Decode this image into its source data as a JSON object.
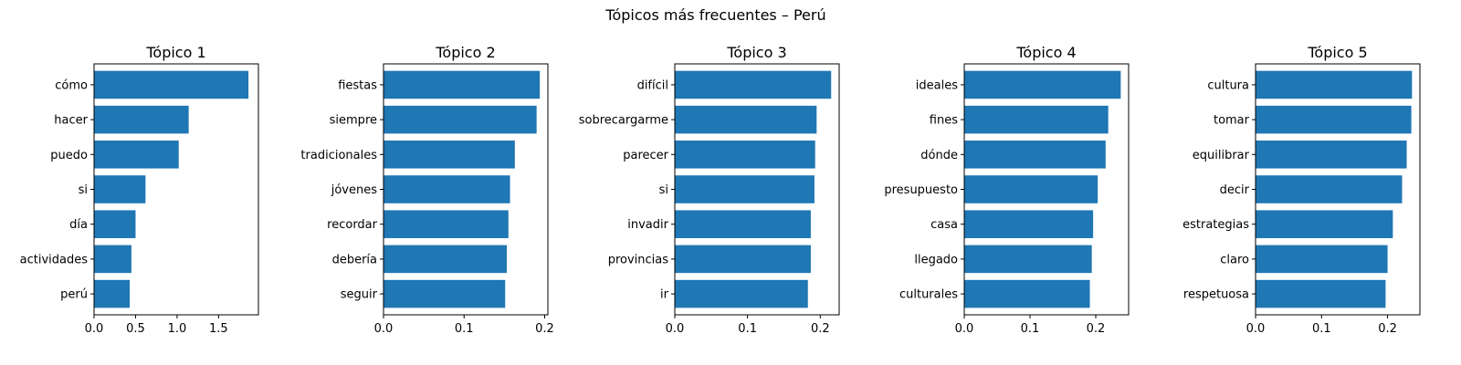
{
  "figure_title": "Tópicos más frecuentes – Perú",
  "bar_color": "#1f77b4",
  "chart_data": [
    {
      "type": "bar",
      "orientation": "horizontal",
      "title": "Tópico 1",
      "categories": [
        "cómo",
        "hacer",
        "puedo",
        "si",
        "día",
        "actividades",
        "perú"
      ],
      "values": [
        1.86,
        1.14,
        1.02,
        0.62,
        0.5,
        0.45,
        0.43
      ],
      "xlim": [
        0,
        1.98
      ],
      "xticks": [
        0.0,
        0.5,
        1.0,
        1.5
      ],
      "xtick_labels": [
        "0.0",
        "0.5",
        "1.0",
        "1.5"
      ]
    },
    {
      "type": "bar",
      "orientation": "horizontal",
      "title": "Tópico 2",
      "categories": [
        "fiestas",
        "siempre",
        "tradicionales",
        "jóvenes",
        "recordar",
        "debería",
        "seguir"
      ],
      "values": [
        0.194,
        0.19,
        0.163,
        0.157,
        0.155,
        0.153,
        0.151
      ],
      "xlim": [
        0,
        0.204
      ],
      "xticks": [
        0.0,
        0.1,
        0.2
      ],
      "xtick_labels": [
        "0.0",
        "0.1",
        "0.2"
      ]
    },
    {
      "type": "bar",
      "orientation": "horizontal",
      "title": "Tópico 3",
      "categories": [
        "difícil",
        "sobrecargarme",
        "parecer",
        "si",
        "invadir",
        "provincias",
        "ir"
      ],
      "values": [
        0.215,
        0.195,
        0.193,
        0.192,
        0.187,
        0.187,
        0.183
      ],
      "xlim": [
        0,
        0.226
      ],
      "xticks": [
        0.0,
        0.1,
        0.2
      ],
      "xtick_labels": [
        "0.0",
        "0.1",
        "0.2"
      ]
    },
    {
      "type": "bar",
      "orientation": "horizontal",
      "title": "Tópico 4",
      "categories": [
        "ideales",
        "fines",
        "dónde",
        "presupuesto",
        "casa",
        "llegado",
        "culturales"
      ],
      "values": [
        0.238,
        0.219,
        0.215,
        0.203,
        0.196,
        0.194,
        0.191
      ],
      "xlim": [
        0,
        0.25
      ],
      "xticks": [
        0.0,
        0.1,
        0.2
      ],
      "xtick_labels": [
        "0.0",
        "0.1",
        "0.2"
      ]
    },
    {
      "type": "bar",
      "orientation": "horizontal",
      "title": "Tópico 5",
      "categories": [
        "cultura",
        "tomar",
        "equilibrar",
        "decir",
        "estrategias",
        "claro",
        "respetuosa"
      ],
      "values": [
        0.237,
        0.236,
        0.229,
        0.222,
        0.208,
        0.2,
        0.197
      ],
      "xlim": [
        0,
        0.249
      ],
      "xticks": [
        0.0,
        0.1,
        0.2
      ],
      "xtick_labels": [
        "0.0",
        "0.1",
        "0.2"
      ]
    }
  ]
}
